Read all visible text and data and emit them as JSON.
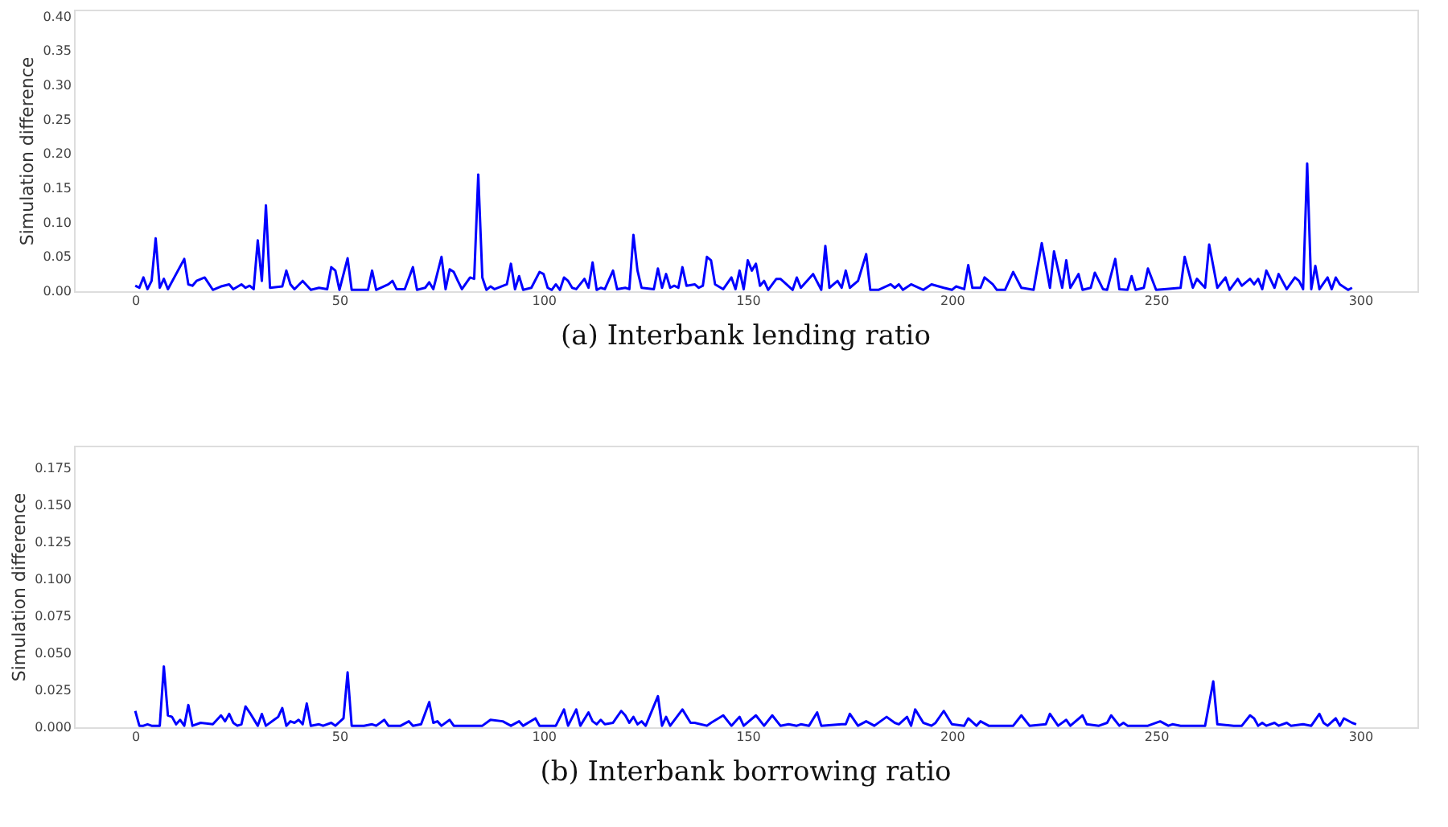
{
  "chart_data": [
    {
      "type": "line",
      "title": "(a) Interbank lending ratio",
      "ylabel": "Simulation difference",
      "xlim": [
        -15,
        314
      ],
      "xticks": [
        0,
        50,
        100,
        150,
        200,
        250,
        300
      ],
      "ylim": [
        0,
        0.41
      ],
      "yticks": [
        {
          "value": 0,
          "label": "0.00"
        },
        0.05,
        {
          "value": 0.1,
          "label": "0.10"
        },
        0.15,
        {
          "value": 0.2,
          "label": "0.20"
        },
        0.25,
        {
          "value": 0.3,
          "label": "0.30"
        },
        0.35,
        {
          "value": 0.4,
          "label": "0.40"
        }
      ],
      "grid": false,
      "marker": "none",
      "line_style": "solid",
      "series": [
        {
          "color": "#0000ff",
          "x": [
            0,
            1,
            2,
            3,
            4,
            5,
            6,
            7,
            8,
            12,
            13,
            14,
            15,
            17,
            19,
            21,
            23,
            24,
            26,
            27,
            28,
            29,
            30,
            31,
            32,
            33,
            36,
            37,
            38,
            39,
            41,
            43,
            45,
            47,
            48,
            49,
            50,
            52,
            53,
            57,
            58,
            59,
            62,
            63,
            64,
            66,
            68,
            69,
            71,
            72,
            73,
            75,
            76,
            77,
            78,
            79,
            80,
            82,
            83,
            84,
            85,
            86,
            87,
            88,
            91,
            92,
            93,
            94,
            95,
            97,
            99,
            100,
            101,
            102,
            103,
            104,
            105,
            106,
            107,
            108,
            110,
            111,
            112,
            113,
            114,
            115,
            117,
            118,
            120,
            121,
            122,
            123,
            124,
            127,
            128,
            129,
            130,
            131,
            132,
            133,
            134,
            135,
            137,
            138,
            139,
            140,
            141,
            142,
            144,
            146,
            147,
            148,
            149,
            150,
            151,
            152,
            153,
            154,
            155,
            157,
            158,
            161,
            162,
            163,
            166,
            168,
            169,
            170,
            172,
            173,
            174,
            175,
            177,
            179,
            180,
            182,
            185,
            186,
            187,
            188,
            190,
            193,
            195,
            198,
            200,
            201,
            203,
            204,
            205,
            207,
            208,
            210,
            211,
            213,
            215,
            217,
            220,
            222,
            224,
            225,
            227,
            228,
            229,
            231,
            232,
            234,
            235,
            237,
            238,
            240,
            241,
            243,
            244,
            245,
            247,
            248,
            250,
            252,
            256,
            257,
            259,
            260,
            262,
            263,
            265,
            267,
            268,
            270,
            271,
            273,
            274,
            275,
            276,
            277,
            279,
            280,
            282,
            284,
            285,
            286,
            287,
            288,
            289,
            290,
            292,
            293,
            294,
            295,
            297,
            298
          ],
          "values": [
            0.008,
            0.005,
            0.02,
            0.003,
            0.015,
            0.077,
            0.005,
            0.018,
            0.003,
            0.047,
            0.01,
            0.008,
            0.015,
            0.02,
            0.002,
            0.007,
            0.01,
            0.003,
            0.01,
            0.005,
            0.008,
            0.003,
            0.074,
            0.015,
            0.125,
            0.005,
            0.007,
            0.03,
            0.01,
            0.003,
            0.015,
            0.002,
            0.005,
            0.003,
            0.035,
            0.03,
            0.002,
            0.048,
            0.002,
            0.002,
            0.03,
            0.002,
            0.01,
            0.015,
            0.003,
            0.003,
            0.035,
            0.002,
            0.005,
            0.013,
            0.003,
            0.05,
            0.003,
            0.032,
            0.028,
            0.015,
            0.003,
            0.02,
            0.018,
            0.17,
            0.02,
            0.002,
            0.007,
            0.003,
            0.01,
            0.04,
            0.003,
            0.022,
            0.002,
            0.005,
            0.028,
            0.025,
            0.005,
            0.002,
            0.01,
            0.002,
            0.02,
            0.015,
            0.005,
            0.003,
            0.018,
            0.005,
            0.042,
            0.002,
            0.005,
            0.003,
            0.03,
            0.003,
            0.005,
            0.003,
            0.082,
            0.03,
            0.005,
            0.003,
            0.033,
            0.005,
            0.025,
            0.005,
            0.008,
            0.005,
            0.035,
            0.008,
            0.01,
            0.005,
            0.008,
            0.05,
            0.045,
            0.01,
            0.003,
            0.02,
            0.003,
            0.03,
            0.003,
            0.045,
            0.03,
            0.04,
            0.008,
            0.015,
            0.002,
            0.018,
            0.018,
            0.002,
            0.02,
            0.005,
            0.025,
            0.002,
            0.066,
            0.005,
            0.015,
            0.005,
            0.03,
            0.005,
            0.015,
            0.054,
            0.002,
            0.002,
            0.01,
            0.005,
            0.01,
            0.002,
            0.01,
            0.002,
            0.01,
            0.005,
            0.002,
            0.007,
            0.003,
            0.038,
            0.005,
            0.005,
            0.02,
            0.01,
            0.002,
            0.002,
            0.028,
            0.005,
            0.002,
            0.07,
            0.005,
            0.058,
            0.005,
            0.045,
            0.005,
            0.025,
            0.002,
            0.005,
            0.027,
            0.003,
            0.002,
            0.047,
            0.003,
            0.002,
            0.022,
            0.002,
            0.005,
            0.033,
            0.002,
            0.003,
            0.005,
            0.05,
            0.005,
            0.018,
            0.005,
            0.068,
            0.005,
            0.02,
            0.002,
            0.018,
            0.008,
            0.018,
            0.01,
            0.018,
            0.003,
            0.03,
            0.005,
            0.025,
            0.003,
            0.02,
            0.015,
            0.003,
            0.186,
            0.003,
            0.037,
            0.003,
            0.02,
            0.003,
            0.02,
            0.01,
            0.002,
            0.005
          ]
        }
      ]
    },
    {
      "type": "line",
      "title": "(b) Interbank borrowing ratio",
      "ylabel": "Simulation difference",
      "xlim": [
        -15,
        314
      ],
      "xticks": [
        0,
        50,
        100,
        150,
        200,
        250,
        300
      ],
      "ylim": [
        0,
        0.19
      ],
      "yticks": [
        {
          "value": 0,
          "label": "0.000"
        },
        {
          "value": 0.025,
          "label": "0.025"
        },
        {
          "value": 0.05,
          "label": "0.050"
        },
        {
          "value": 0.075,
          "label": "0.075"
        },
        {
          "value": 0.1,
          "label": "0.100"
        },
        {
          "value": 0.125,
          "label": "0.125"
        },
        {
          "value": 0.15,
          "label": "0.150"
        },
        {
          "value": 0.175,
          "label": "0.175"
        }
      ],
      "grid": false,
      "marker": "none",
      "line_style": "solid",
      "series": [
        {
          "color": "#0000ff",
          "x": [
            0,
            1,
            2,
            3,
            4,
            6,
            7,
            8,
            9,
            10,
            11,
            12,
            13,
            14,
            16,
            19,
            21,
            22,
            23,
            24,
            25,
            26,
            27,
            28,
            30,
            31,
            32,
            34,
            35,
            36,
            37,
            38,
            39,
            40,
            41,
            42,
            43,
            45,
            46,
            48,
            49,
            51,
            52,
            53,
            56,
            58,
            59,
            61,
            62,
            65,
            67,
            68,
            70,
            72,
            73,
            74,
            75,
            77,
            78,
            80,
            82,
            85,
            87,
            90,
            92,
            94,
            95,
            98,
            99,
            103,
            105,
            106,
            108,
            109,
            111,
            112,
            113,
            114,
            115,
            117,
            119,
            120,
            121,
            122,
            123,
            124,
            125,
            128,
            129,
            130,
            131,
            134,
            136,
            137,
            140,
            141,
            144,
            146,
            148,
            149,
            152,
            154,
            156,
            158,
            160,
            162,
            163,
            165,
            167,
            168,
            173,
            174,
            175,
            177,
            179,
            181,
            184,
            186,
            187,
            189,
            190,
            191,
            193,
            195,
            196,
            198,
            200,
            203,
            204,
            206,
            207,
            209,
            210,
            212,
            215,
            217,
            219,
            223,
            224,
            226,
            228,
            229,
            232,
            233,
            236,
            238,
            239,
            241,
            242,
            243,
            246,
            248,
            251,
            253,
            254,
            256,
            260,
            262,
            264,
            265,
            269,
            271,
            273,
            274,
            275,
            276,
            277,
            279,
            280,
            282,
            283,
            286,
            288,
            290,
            291,
            292,
            294,
            295,
            296,
            298,
            299
          ],
          "values": [
            0.011,
            0.001,
            0.001,
            0.002,
            0.001,
            0.001,
            0.041,
            0.008,
            0.007,
            0.002,
            0.005,
            0.001,
            0.015,
            0.001,
            0.003,
            0.002,
            0.008,
            0.004,
            0.009,
            0.003,
            0.001,
            0.002,
            0.014,
            0.01,
            0.001,
            0.009,
            0.001,
            0.005,
            0.007,
            0.013,
            0.001,
            0.004,
            0.003,
            0.005,
            0.002,
            0.016,
            0.001,
            0.002,
            0.001,
            0.003,
            0.001,
            0.006,
            0.037,
            0.001,
            0.001,
            0.002,
            0.001,
            0.005,
            0.001,
            0.001,
            0.004,
            0.001,
            0.002,
            0.017,
            0.003,
            0.004,
            0.001,
            0.005,
            0.001,
            0.001,
            0.001,
            0.001,
            0.005,
            0.004,
            0.001,
            0.004,
            0.001,
            0.006,
            0.001,
            0.001,
            0.012,
            0.001,
            0.012,
            0.001,
            0.01,
            0.004,
            0.002,
            0.005,
            0.002,
            0.003,
            0.011,
            0.008,
            0.003,
            0.007,
            0.002,
            0.004,
            0.001,
            0.021,
            0.001,
            0.007,
            0.001,
            0.012,
            0.003,
            0.003,
            0.001,
            0.003,
            0.008,
            0.001,
            0.007,
            0.001,
            0.008,
            0.001,
            0.008,
            0.001,
            0.002,
            0.001,
            0.002,
            0.001,
            0.01,
            0.001,
            0.002,
            0.002,
            0.009,
            0.001,
            0.004,
            0.001,
            0.007,
            0.003,
            0.002,
            0.007,
            0.001,
            0.012,
            0.003,
            0.001,
            0.003,
            0.011,
            0.002,
            0.001,
            0.006,
            0.001,
            0.004,
            0.001,
            0.001,
            0.001,
            0.001,
            0.008,
            0.001,
            0.002,
            0.009,
            0.001,
            0.005,
            0.001,
            0.008,
            0.002,
            0.001,
            0.003,
            0.008,
            0.001,
            0.003,
            0.001,
            0.001,
            0.001,
            0.004,
            0.001,
            0.002,
            0.001,
            0.001,
            0.001,
            0.031,
            0.002,
            0.001,
            0.001,
            0.008,
            0.006,
            0.001,
            0.003,
            0.001,
            0.003,
            0.001,
            0.003,
            0.001,
            0.002,
            0.001,
            0.009,
            0.003,
            0.001,
            0.006,
            0.001,
            0.006,
            0.003,
            0.002
          ]
        }
      ]
    }
  ]
}
